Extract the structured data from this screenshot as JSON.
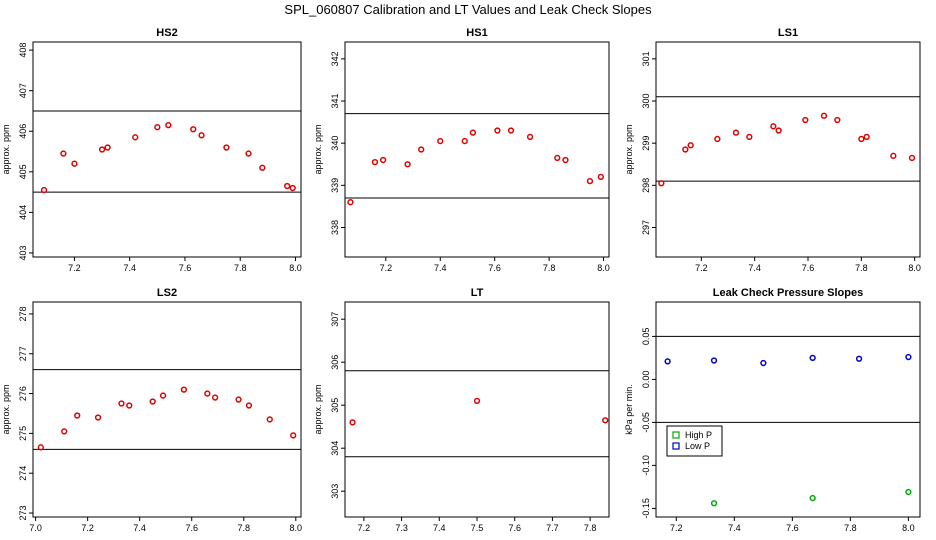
{
  "suptitle": "SPL_060807  Calibration and LT Values and Leak Check Slopes",
  "chart_data": [
    {
      "type": "scatter",
      "title": "HS2",
      "xlabel": "",
      "ylabel": "approx. ppm",
      "xlim": [
        7.05,
        8.02
      ],
      "ylim": [
        402.9,
        408.2
      ],
      "xticks": [
        7.2,
        7.4,
        7.6,
        7.8,
        8.0
      ],
      "xtick_labels": [
        "7.2",
        "7.4",
        "7.6",
        "7.8",
        "8.0"
      ],
      "yticks": [
        403,
        404,
        405,
        406,
        407,
        408
      ],
      "ytick_labels": [
        "403",
        "404",
        "405",
        "406",
        "407",
        "408"
      ],
      "hlines": [
        404.5,
        406.5
      ],
      "grid": false,
      "marker_color": "#e00000",
      "series": [
        {
          "x": [
            7.09,
            7.16,
            7.2,
            7.3,
            7.32,
            7.42,
            7.5,
            7.54,
            7.63,
            7.66,
            7.75,
            7.83,
            7.88,
            7.97,
            7.99
          ],
          "y": [
            404.55,
            405.45,
            405.2,
            405.55,
            405.6,
            405.85,
            406.1,
            406.15,
            406.05,
            405.9,
            405.6,
            405.45,
            405.1,
            404.65,
            404.6
          ]
        }
      ]
    },
    {
      "type": "scatter",
      "title": "HS1",
      "xlabel": "",
      "ylabel": "approx. ppm",
      "xlim": [
        7.05,
        8.02
      ],
      "ylim": [
        337.3,
        342.4
      ],
      "xticks": [
        7.2,
        7.4,
        7.6,
        7.8,
        8.0
      ],
      "xtick_labels": [
        "7.2",
        "7.4",
        "7.6",
        "7.8",
        "8.0"
      ],
      "yticks": [
        338,
        339,
        340,
        341,
        342
      ],
      "ytick_labels": [
        "338",
        "339",
        "340",
        "341",
        "342"
      ],
      "hlines": [
        338.7,
        340.7
      ],
      "grid": false,
      "marker_color": "#e00000",
      "series": [
        {
          "x": [
            7.07,
            7.16,
            7.19,
            7.28,
            7.33,
            7.4,
            7.49,
            7.52,
            7.61,
            7.66,
            7.73,
            7.83,
            7.86,
            7.95,
            7.99
          ],
          "y": [
            338.6,
            339.55,
            339.6,
            339.5,
            339.85,
            340.05,
            340.05,
            340.25,
            340.3,
            340.3,
            340.15,
            339.65,
            339.6,
            339.1,
            339.2
          ]
        }
      ]
    },
    {
      "type": "scatter",
      "title": "LS1",
      "xlabel": "",
      "ylabel": "approx. ppm",
      "xlim": [
        7.03,
        8.02
      ],
      "ylim": [
        296.3,
        301.4
      ],
      "xticks": [
        7.2,
        7.4,
        7.6,
        7.8,
        8.0
      ],
      "xtick_labels": [
        "7.2",
        "7.4",
        "7.6",
        "7.8",
        "8.0"
      ],
      "yticks": [
        297,
        298,
        299,
        300,
        301
      ],
      "ytick_labels": [
        "297",
        "298",
        "299",
        "300",
        "301"
      ],
      "hlines": [
        298.1,
        300.1
      ],
      "grid": false,
      "marker_color": "#e00000",
      "series": [
        {
          "x": [
            7.05,
            7.14,
            7.16,
            7.26,
            7.33,
            7.38,
            7.47,
            7.49,
            7.59,
            7.66,
            7.71,
            7.8,
            7.82,
            7.92,
            7.99
          ],
          "y": [
            298.05,
            298.85,
            298.95,
            299.1,
            299.25,
            299.15,
            299.4,
            299.3,
            299.55,
            299.65,
            299.55,
            299.1,
            299.15,
            298.7,
            298.65
          ]
        }
      ]
    },
    {
      "type": "scatter",
      "title": "LS2",
      "xlabel": "",
      "ylabel": "approx. ppm",
      "xlim": [
        6.99,
        8.02
      ],
      "ylim": [
        272.9,
        278.3
      ],
      "xticks": [
        7.0,
        7.2,
        7.4,
        7.6,
        7.8,
        8.0
      ],
      "xtick_labels": [
        "7.0",
        "7.2",
        "7.4",
        "7.6",
        "7.8",
        "8.0"
      ],
      "yticks": [
        273,
        274,
        275,
        276,
        277,
        278
      ],
      "ytick_labels": [
        "273",
        "274",
        "275",
        "276",
        "277",
        "278"
      ],
      "hlines": [
        274.6,
        276.6
      ],
      "grid": false,
      "marker_color": "#e00000",
      "series": [
        {
          "x": [
            7.02,
            7.11,
            7.16,
            7.24,
            7.33,
            7.36,
            7.45,
            7.49,
            7.57,
            7.66,
            7.69,
            7.78,
            7.82,
            7.9,
            7.99
          ],
          "y": [
            274.65,
            275.05,
            275.45,
            275.4,
            275.75,
            275.7,
            275.8,
            275.95,
            276.1,
            276.0,
            275.9,
            275.85,
            275.7,
            275.35,
            274.95
          ]
        }
      ]
    },
    {
      "type": "scatter",
      "title": "LT",
      "xlabel": "",
      "ylabel": "approx. ppm",
      "xlim": [
        7.15,
        7.85
      ],
      "ylim": [
        302.4,
        307.4
      ],
      "xticks": [
        7.2,
        7.3,
        7.4,
        7.5,
        7.6,
        7.7,
        7.8
      ],
      "xtick_labels": [
        "7.2",
        "7.3",
        "7.4",
        "7.5",
        "7.6",
        "7.7",
        "7.8"
      ],
      "yticks": [
        303,
        304,
        305,
        306,
        307
      ],
      "ytick_labels": [
        "303",
        "304",
        "305",
        "306",
        "307"
      ],
      "hlines": [
        303.8,
        305.8
      ],
      "grid": false,
      "marker_color": "#e00000",
      "series": [
        {
          "x": [
            7.17,
            7.5,
            7.84
          ],
          "y": [
            304.6,
            305.1,
            304.65
          ]
        }
      ]
    },
    {
      "type": "scatter",
      "title": "Leak Check Pressure Slopes",
      "xlabel": "",
      "ylabel": "kPa per min.",
      "xlim": [
        7.13,
        8.04
      ],
      "ylim": [
        -0.16,
        0.09
      ],
      "xticks": [
        7.2,
        7.4,
        7.6,
        7.8,
        8.0
      ],
      "xtick_labels": [
        "7.2",
        "7.4",
        "7.6",
        "7.8",
        "8.0"
      ],
      "yticks": [
        -0.15,
        -0.1,
        -0.05,
        0.0,
        0.05
      ],
      "ytick_labels": [
        "-0.15",
        "-0.10",
        "-0.05",
        "0.00",
        "0.05"
      ],
      "hlines": [
        -0.05,
        0.05
      ],
      "grid": false,
      "legend": {
        "position": "left",
        "entries": [
          {
            "name": "High P",
            "color": "#00aa00"
          },
          {
            "name": "Low P",
            "color": "#0000cc"
          }
        ]
      },
      "series": [
        {
          "name": "High P",
          "color": "#00aa00",
          "x": [
            7.33,
            7.67,
            8.0
          ],
          "y": [
            -0.144,
            -0.138,
            -0.131
          ]
        },
        {
          "name": "Low P",
          "color": "#0000cc",
          "x": [
            7.17,
            7.33,
            7.5,
            7.67,
            7.83,
            8.0
          ],
          "y": [
            0.021,
            0.022,
            0.019,
            0.025,
            0.024,
            0.026
          ]
        }
      ]
    }
  ]
}
